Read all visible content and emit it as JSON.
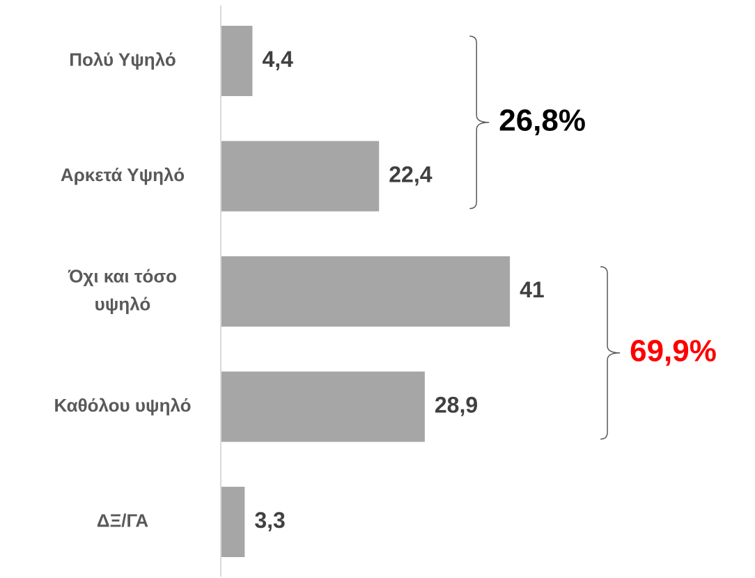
{
  "chart_data": {
    "type": "bar",
    "orientation": "horizontal",
    "categories": [
      "Πολύ Υψηλό",
      "Αρκετά Υψηλό",
      "Όχι και τόσο υψηλό",
      "Καθόλου υψηλό",
      "ΔΞ/ΓΑ"
    ],
    "category_lines": [
      [
        "Πολύ Υψηλό"
      ],
      [
        "Αρκετά Υψηλό"
      ],
      [
        "Όχι και τόσο",
        "υψηλό"
      ],
      [
        "Καθόλου υψηλό"
      ],
      [
        "ΔΞ/ΓΑ"
      ]
    ],
    "values": [
      4.4,
      22.4,
      41,
      28.9,
      3.3
    ],
    "value_labels": [
      "4,4",
      "22,4",
      "41",
      "28,9",
      "3,3"
    ],
    "xlim": [
      0,
      60
    ],
    "grid": false,
    "bar_color": "#a6a6a6",
    "groups": [
      {
        "label": "26,8%",
        "from": 0,
        "to": 1,
        "color": "#000000"
      },
      {
        "label": "69,9%",
        "from": 2,
        "to": 3,
        "color": "#ff0000"
      }
    ]
  }
}
